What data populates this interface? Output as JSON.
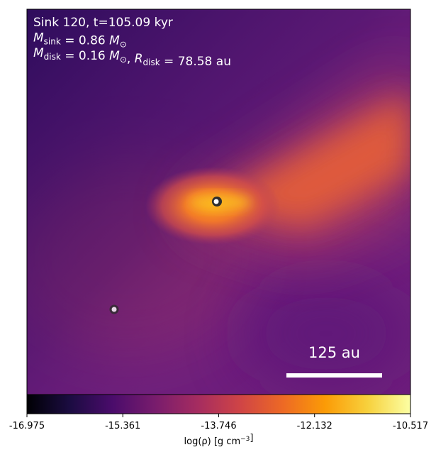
{
  "chart_data": {
    "type": "image",
    "annotations": [
      [
        {
          "text": "Sink 120, t=105.09 kyr"
        }
      ],
      [
        {
          "math": "M"
        },
        {
          "sub": "sink"
        },
        {
          "text": " = 0.86 "
        },
        {
          "math": "M"
        },
        {
          "sub": "⊙"
        }
      ],
      [
        {
          "math": "M"
        },
        {
          "sub": "disk"
        },
        {
          "text": " = 0.16 "
        },
        {
          "math": "M"
        },
        {
          "sub": "⊙"
        },
        {
          "text": ", "
        },
        {
          "math": "R"
        },
        {
          "sub": "disk"
        },
        {
          "text": " = 78.58 au"
        }
      ]
    ],
    "scale_bar": {
      "value": 125,
      "label": "125 au"
    },
    "colorbar": {
      "label": [
        {
          "text": "log(ρ) [g cm"
        },
        {
          "sup": "−3"
        },
        {
          "text": "]"
        }
      ],
      "clim": [
        -16.975,
        -10.517
      ],
      "ticks": [
        -16.975,
        -15.361,
        -13.746,
        -12.132,
        -10.517
      ],
      "colormap": [
        "#000004",
        "#1b0c41",
        "#4a0c6b",
        "#781c6d",
        "#a52c60",
        "#cf4446",
        "#ed6925",
        "#fb9b06",
        "#f7d13d",
        "#fcffa4"
      ]
    }
  }
}
